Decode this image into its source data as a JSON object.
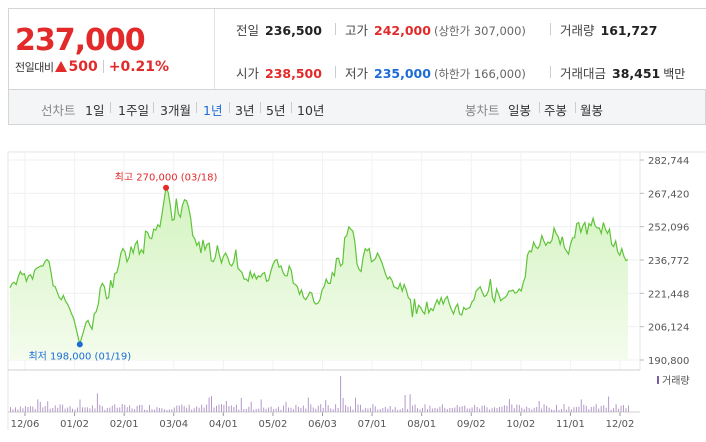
{
  "quote": {
    "price": "237,000",
    "change_label": "전일대비",
    "change_value": "500",
    "change_rate": "+0.21%",
    "prev_close": {
      "label": "전일",
      "value": "236,500"
    },
    "high": {
      "label": "고가",
      "value": "242,000",
      "sub": "(상한가 307,000)"
    },
    "volume": {
      "label": "거래량",
      "value": "161,727"
    },
    "open": {
      "label": "시가",
      "value": "238,500"
    },
    "low": {
      "label": "저가",
      "value": "235,000",
      "sub": "(하한가 166,000)"
    },
    "amount": {
      "label": "거래대금",
      "value": "38,451",
      "unit": "백만"
    }
  },
  "line_chart_bar": {
    "label": "선차트",
    "periods": [
      "1일",
      "1주일",
      "3개월",
      "1년",
      "3년",
      "5년",
      "10년"
    ],
    "active": "1년"
  },
  "candle_chart_bar": {
    "label": "봉차트",
    "periods": [
      "일봉",
      "주봉",
      "월봉"
    ]
  },
  "colors": {
    "up": "#e22a2a",
    "down": "#1d6cd6",
    "line": "#5fc43a",
    "fill_top": "#d3f3bf",
    "fill_bottom": "#f4fcee",
    "volume_bar": "#b39ac9"
  },
  "chart_data": {
    "type": "area",
    "y_ticks": [
      "282,744",
      "267,420",
      "252,096",
      "236,772",
      "221,448",
      "206,124",
      "190,800"
    ],
    "ylim": [
      190800,
      282744
    ],
    "x_ticks": [
      "12/06",
      "01/02",
      "02/01",
      "03/04",
      "04/01",
      "05/02",
      "06/03",
      "07/01",
      "08/01",
      "09/02",
      "10/02",
      "11/01",
      "12/02"
    ],
    "high_label": "최고 270,000 (03/18)",
    "low_label": "최저 198,000 (01/19)",
    "high": 270000,
    "low": 198000,
    "volume_legend": "거래량",
    "series": [
      {
        "values": [
          224000,
          226000,
          226500,
          225500,
          229000,
          231500,
          230000,
          230500,
          227000,
          229500,
          230000,
          228000,
          232000,
          233000,
          233500,
          234000,
          234000,
          236000,
          237000,
          236000,
          231000,
          225000,
          224500,
          222000,
          219500,
          218500,
          220500,
          218000,
          216500,
          214500,
          212000,
          210000,
          206000,
          202000,
          198000,
          201500,
          204500,
          208000,
          209000,
          206500,
          205000,
          212000,
          213000,
          216500,
          224000,
          226000,
          224500,
          219000,
          219500,
          227500,
          224000,
          230500,
          231000,
          234500,
          240000,
          242000,
          240500,
          236000,
          238000,
          243000,
          240000,
          244000,
          245500,
          239500,
          241500,
          240000,
          250000,
          249500,
          247000,
          246500,
          251000,
          250500,
          253000,
          252000,
          257500,
          264000,
          270000,
          268000,
          262500,
          255000,
          255500,
          265000,
          258000,
          256500,
          262000,
          264500,
          264000,
          261000,
          256000,
          248000,
          246500,
          243500,
          245000,
          240000,
          246000,
          241500,
          244000,
          244500,
          236500,
          236000,
          238000,
          243500,
          239000,
          235500,
          238500,
          240000,
          238000,
          235000,
          234000,
          236000,
          241500,
          233000,
          232000,
          231000,
          228000,
          228000,
          227000,
          231500,
          228500,
          230500,
          228000,
          229500,
          229000,
          230500,
          231000,
          227000,
          227500,
          231500,
          234500,
          236500,
          237000,
          233500,
          234000,
          231000,
          229500,
          229500,
          234000,
          232000,
          226000,
          225500,
          224500,
          221000,
          223000,
          219500,
          218500,
          220000,
          222000,
          221500,
          217500,
          216500,
          217000,
          218500,
          223000,
          224500,
          228000,
          226000,
          226000,
          231000,
          229500,
          237500,
          237500,
          234000,
          235000,
          247000,
          248000,
          252000,
          251000,
          250000,
          245000,
          235000,
          232500,
          231500,
          238000,
          242000,
          241000,
          242000,
          236000,
          236500,
          237500,
          240000,
          238000,
          236000,
          233000,
          230000,
          228000,
          229000,
          227500,
          224500,
          224000,
          223500,
          226000,
          222500,
          225500,
          223000,
          219500,
          218500,
          210500,
          219000,
          212000,
          216000,
          215000,
          213000,
          212000,
          217500,
          212500,
          214500,
          213500,
          216000,
          218500,
          216500,
          219500,
          216500,
          219000,
          220000,
          216500,
          214000,
          212000,
          215000,
          216500,
          212000,
          211500,
          215000,
          214000,
          214500,
          215000,
          217500,
          218500,
          222500,
          223500,
          224500,
          222000,
          220000,
          220500,
          222500,
          228000,
          219500,
          217500,
          223500,
          221000,
          218000,
          219000,
          219500,
          220500,
          222500,
          222500,
          223000,
          221500,
          222000,
          223500,
          222500,
          226500,
          229000,
          239000,
          241000,
          240500,
          245000,
          243000,
          242000,
          243500,
          248000,
          245500,
          243500,
          245000,
          244500,
          246000,
          251500,
          249000,
          247500,
          244000,
          247500,
          242500,
          241000,
          239500,
          244000,
          247000,
          247000,
          253500,
          254000,
          249500,
          252500,
          254000,
          248500,
          253500,
          252500,
          256000,
          252500,
          251500,
          251500,
          249000,
          254000,
          251000,
          249000,
          251000,
          244000,
          243000,
          245500,
          240500,
          239000,
          242000,
          238500,
          236500,
          237000
        ]
      }
    ]
  }
}
